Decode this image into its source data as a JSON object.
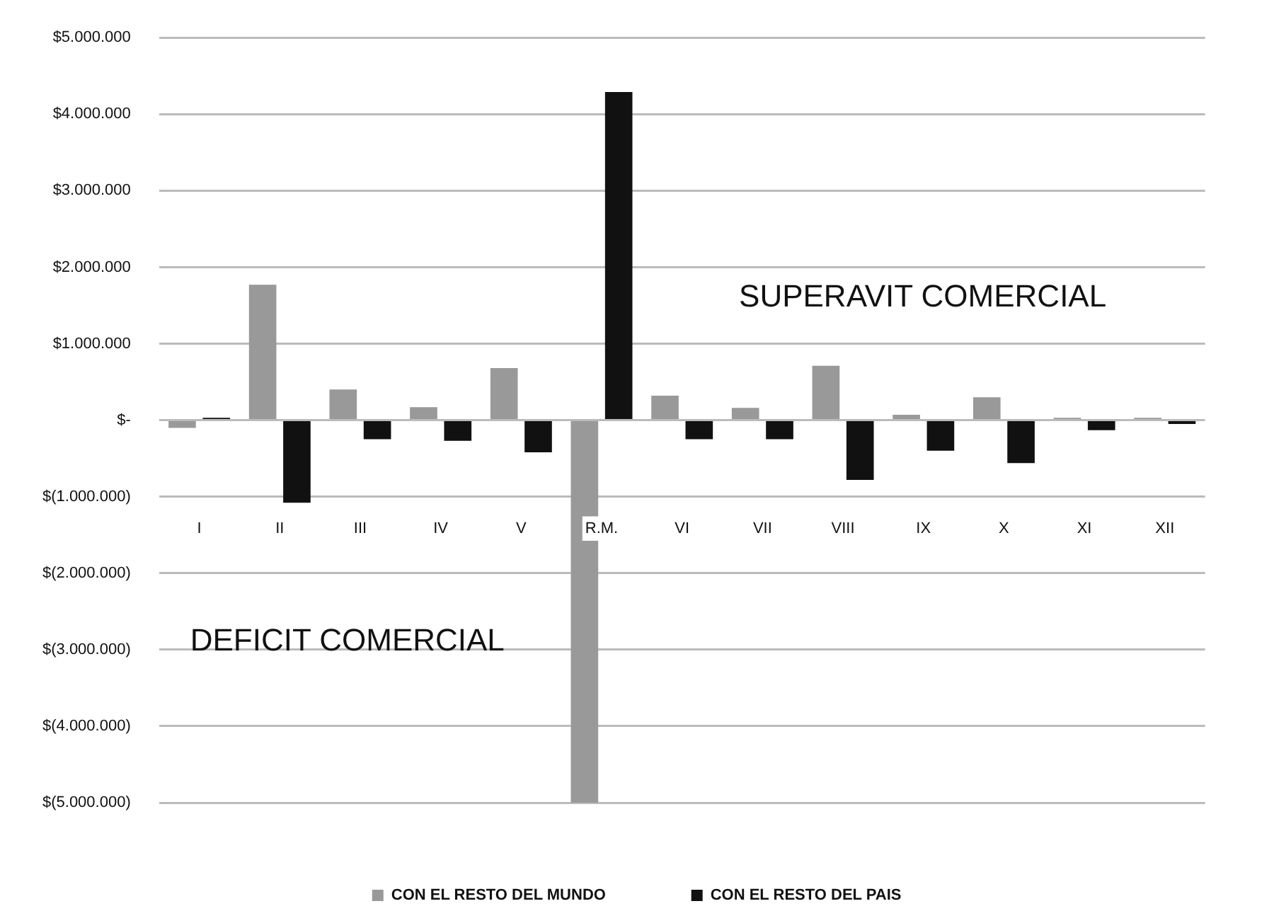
{
  "chart_data": {
    "type": "bar",
    "categories": [
      "I",
      "II",
      "III",
      "IV",
      "V",
      "R.M.",
      "VI",
      "VII",
      "VIII",
      "IX",
      "X",
      "XI",
      "XII"
    ],
    "series": [
      {
        "name": "CON EL RESTO DEL MUNDO",
        "color": "#999999",
        "values": [
          -100000,
          1770000,
          400000,
          170000,
          680000,
          -5000000,
          320000,
          160000,
          710000,
          70000,
          300000,
          30000,
          30000
        ]
      },
      {
        "name": "CON EL RESTO DEL PAIS",
        "color": "#111111",
        "values": [
          30000,
          -1080000,
          -250000,
          -270000,
          -420000,
          4290000,
          -250000,
          -250000,
          -780000,
          -400000,
          -560000,
          -130000,
          -50000
        ]
      }
    ],
    "ylim": [
      -5000000,
      5000000
    ],
    "yticks": [
      {
        "value": -5000000,
        "label": "$(5.000.000)"
      },
      {
        "value": -4000000,
        "label": "$(4.000.000)"
      },
      {
        "value": -3000000,
        "label": "$(3.000.000)"
      },
      {
        "value": -2000000,
        "label": "$(2.000.000)"
      },
      {
        "value": -1000000,
        "label": "$(1.000.000)"
      },
      {
        "value": 0,
        "label": "$-"
      },
      {
        "value": 1000000,
        "label": "$1.000.000"
      },
      {
        "value": 2000000,
        "label": "$2.000.000"
      },
      {
        "value": 3000000,
        "label": "$3.000.000"
      },
      {
        "value": 4000000,
        "label": "$4.000.000"
      },
      {
        "value": 5000000,
        "label": "$5.000.000"
      }
    ],
    "annotations": [
      "SUPERAVIT COMERCIAL",
      "DEFICIT COMERCIAL"
    ],
    "grid": "y",
    "legend": "bottom"
  }
}
